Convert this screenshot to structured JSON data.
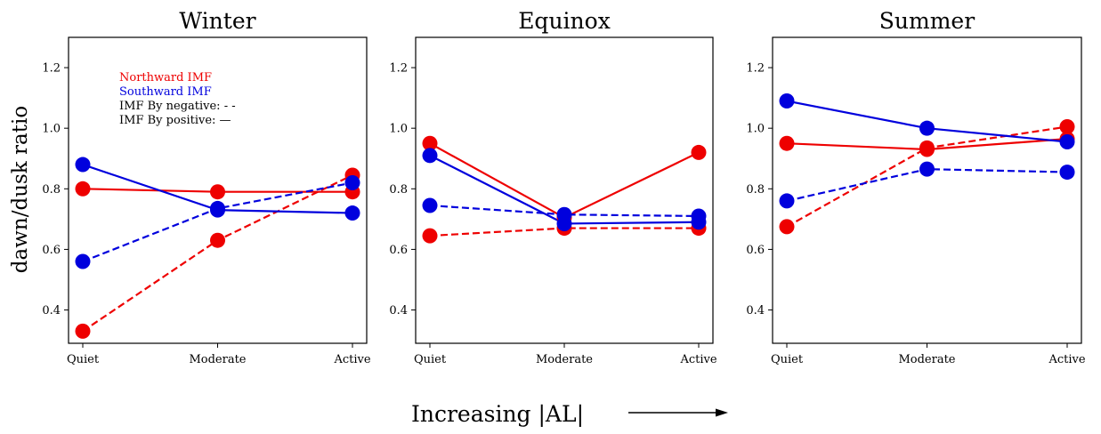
{
  "figure": {
    "ylabel": "dawn/dusk ratio",
    "xlabel": "Increasing |AL|",
    "colors": {
      "northward": "#ee0000",
      "southward": "#0000dd"
    },
    "legend": {
      "placement": "upper-left of first panel",
      "entries": [
        {
          "text": "Northward IMF",
          "color": "#ee0000"
        },
        {
          "text": "Southward IMF",
          "color": "#0000dd"
        },
        {
          "text": "IMF By negative: - -",
          "color": "#000000"
        },
        {
          "text": "IMF By positive: —",
          "color": "#000000"
        }
      ]
    }
  },
  "chart_data": [
    {
      "type": "line",
      "title": "Winter",
      "categories": [
        "Quiet",
        "Moderate",
        "Active"
      ],
      "ylim": [
        0.29,
        1.3
      ],
      "yticks": [
        "0.4",
        "0.6",
        "0.8",
        "1.0",
        "1.2"
      ],
      "grid": false,
      "series": [
        {
          "imf": "northward",
          "by": "positive",
          "style": "solid",
          "values": [
            0.8,
            0.79,
            0.79
          ]
        },
        {
          "imf": "northward",
          "by": "negative",
          "style": "dashed",
          "values": [
            0.33,
            0.63,
            0.845
          ]
        },
        {
          "imf": "southward",
          "by": "positive",
          "style": "solid",
          "values": [
            0.88,
            0.73,
            0.72
          ]
        },
        {
          "imf": "southward",
          "by": "negative",
          "style": "dashed",
          "values": [
            0.56,
            0.735,
            0.82
          ]
        }
      ]
    },
    {
      "type": "line",
      "title": "Equinox",
      "categories": [
        "Quiet",
        "Moderate",
        "Active"
      ],
      "ylim": [
        0.29,
        1.3
      ],
      "yticks": [
        "0.4",
        "0.6",
        "0.8",
        "1.0",
        "1.2"
      ],
      "grid": false,
      "series": [
        {
          "imf": "northward",
          "by": "positive",
          "style": "solid",
          "values": [
            0.95,
            0.705,
            0.92
          ]
        },
        {
          "imf": "northward",
          "by": "negative",
          "style": "dashed",
          "values": [
            0.645,
            0.67,
            0.67
          ]
        },
        {
          "imf": "southward",
          "by": "positive",
          "style": "solid",
          "values": [
            0.91,
            0.685,
            0.69
          ]
        },
        {
          "imf": "southward",
          "by": "negative",
          "style": "dashed",
          "values": [
            0.745,
            0.715,
            0.71
          ]
        }
      ]
    },
    {
      "type": "line",
      "title": "Summer",
      "categories": [
        "Quiet",
        "Moderate",
        "Active"
      ],
      "ylim": [
        0.29,
        1.3
      ],
      "yticks": [
        "0.4",
        "0.6",
        "0.8",
        "1.0",
        "1.2"
      ],
      "grid": false,
      "series": [
        {
          "imf": "northward",
          "by": "positive",
          "style": "solid",
          "values": [
            0.95,
            0.93,
            0.965
          ]
        },
        {
          "imf": "northward",
          "by": "negative",
          "style": "dashed",
          "values": [
            0.675,
            0.935,
            1.005
          ]
        },
        {
          "imf": "southward",
          "by": "positive",
          "style": "solid",
          "values": [
            1.09,
            1.0,
            0.955
          ]
        },
        {
          "imf": "southward",
          "by": "negative",
          "style": "dashed",
          "values": [
            0.76,
            0.865,
            0.855
          ]
        }
      ]
    }
  ]
}
